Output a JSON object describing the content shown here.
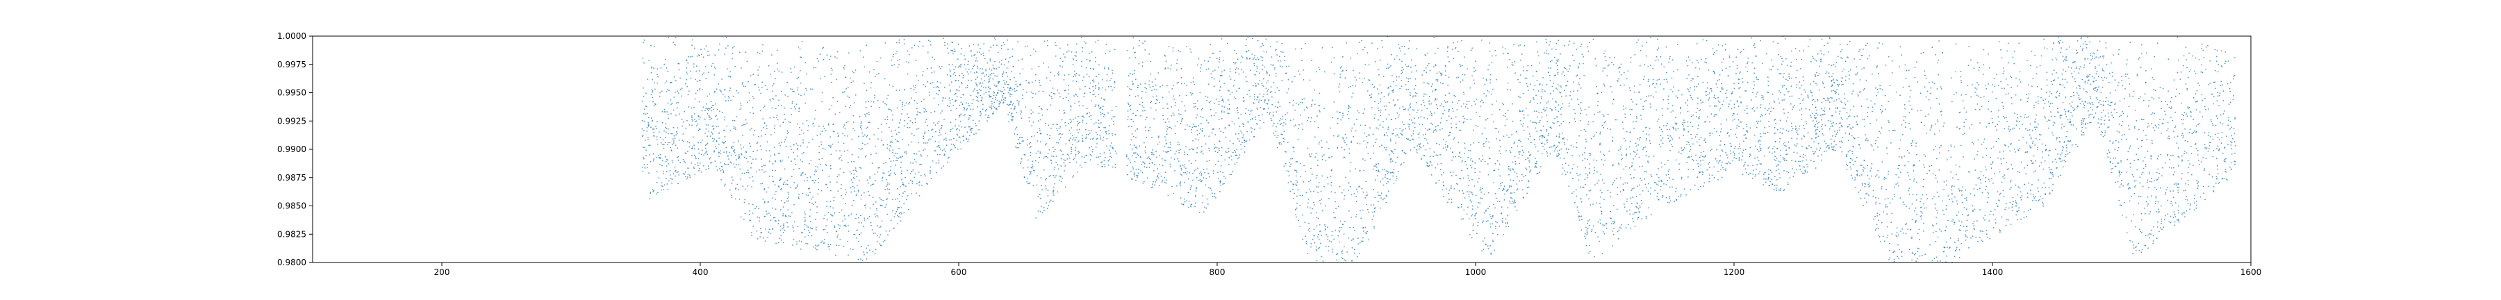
{
  "chart_data": {
    "type": "scatter",
    "title": "",
    "xlabel": "",
    "ylabel": "",
    "xlim": [
      100,
      1600
    ],
    "ylim": [
      0.98,
      1.0
    ],
    "x_ticks": [
      200,
      400,
      600,
      800,
      1000,
      1200,
      1400,
      1600
    ],
    "x_tick_labels": [
      "200",
      "400",
      "600",
      "800",
      "1000",
      "1200",
      "1400",
      "1600"
    ],
    "y_ticks": [
      0.98,
      0.9825,
      0.985,
      0.9875,
      0.99,
      0.9925,
      0.995,
      0.9975,
      1.0
    ],
    "y_tick_labels": [
      "0.9800",
      "0.9825",
      "0.9850",
      "0.9875",
      "0.9900",
      "0.9925",
      "0.9950",
      "0.9975",
      "1.0000"
    ],
    "grid": false,
    "legend": "none",
    "marker_color": "#1f77b4",
    "series": [
      {
        "x_start": 355,
        "x_end": 1590,
        "gaps": [
          [
            722,
            730
          ],
          [
            1588,
            1600
          ]
        ],
        "description_density": [
          {
            "x": 360,
            "y_min": 0.9855
          },
          {
            "x": 410,
            "y_min": 0.9885
          },
          {
            "x": 440,
            "y_min": 0.982
          },
          {
            "x": 485,
            "y_min": 0.981
          },
          {
            "x": 530,
            "y_min": 0.98
          },
          {
            "x": 585,
            "y_min": 0.988
          },
          {
            "x": 635,
            "y_min": 0.994
          },
          {
            "x": 660,
            "y_min": 0.9835
          },
          {
            "x": 700,
            "y_min": 0.989
          },
          {
            "x": 760,
            "y_min": 0.986
          },
          {
            "x": 790,
            "y_min": 0.984
          },
          {
            "x": 840,
            "y_min": 0.993
          },
          {
            "x": 870,
            "y_min": 0.98
          },
          {
            "x": 910,
            "y_min": 0.98
          },
          {
            "x": 950,
            "y_min": 0.99
          },
          {
            "x": 1010,
            "y_min": 0.98
          },
          {
            "x": 1060,
            "y_min": 0.99
          },
          {
            "x": 1090,
            "y_min": 0.98
          },
          {
            "x": 1140,
            "y_min": 0.9845
          },
          {
            "x": 1200,
            "y_min": 0.988
          },
          {
            "x": 1240,
            "y_min": 0.986
          },
          {
            "x": 1280,
            "y_min": 0.99
          },
          {
            "x": 1320,
            "y_min": 0.98
          },
          {
            "x": 1370,
            "y_min": 0.98
          },
          {
            "x": 1440,
            "y_min": 0.985
          },
          {
            "x": 1480,
            "y_min": 0.993
          },
          {
            "x": 1510,
            "y_min": 0.98
          },
          {
            "x": 1560,
            "y_min": 0.985
          },
          {
            "x": 1590,
            "y_min": 0.988
          }
        ]
      }
    ]
  }
}
